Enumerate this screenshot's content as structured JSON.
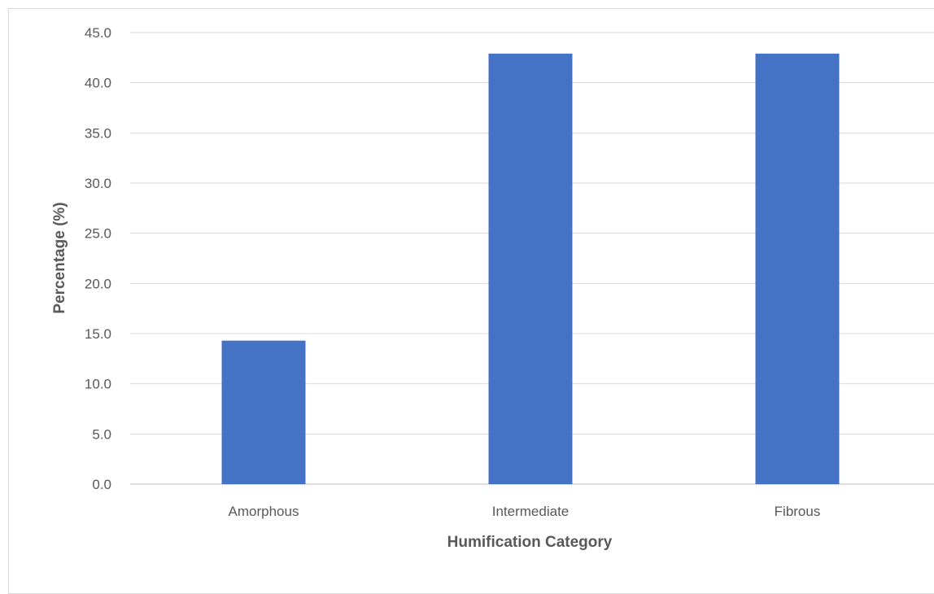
{
  "chart_data": {
    "type": "bar",
    "categories": [
      "Amorphous",
      "Intermediate",
      "Fibrous"
    ],
    "values": [
      14.3,
      42.9,
      42.9
    ],
    "title": "",
    "xlabel": "Humification Category",
    "ylabel": "Percentage (%)",
    "ylim": [
      0,
      45
    ],
    "ytick_step": 5,
    "ytick_labels": [
      "0.0",
      "5.0",
      "10.0",
      "15.0",
      "20.0",
      "25.0",
      "30.0",
      "35.0",
      "40.0",
      "45.0"
    ],
    "grid": true,
    "legend": "none",
    "bar_color": "#4472C4"
  }
}
